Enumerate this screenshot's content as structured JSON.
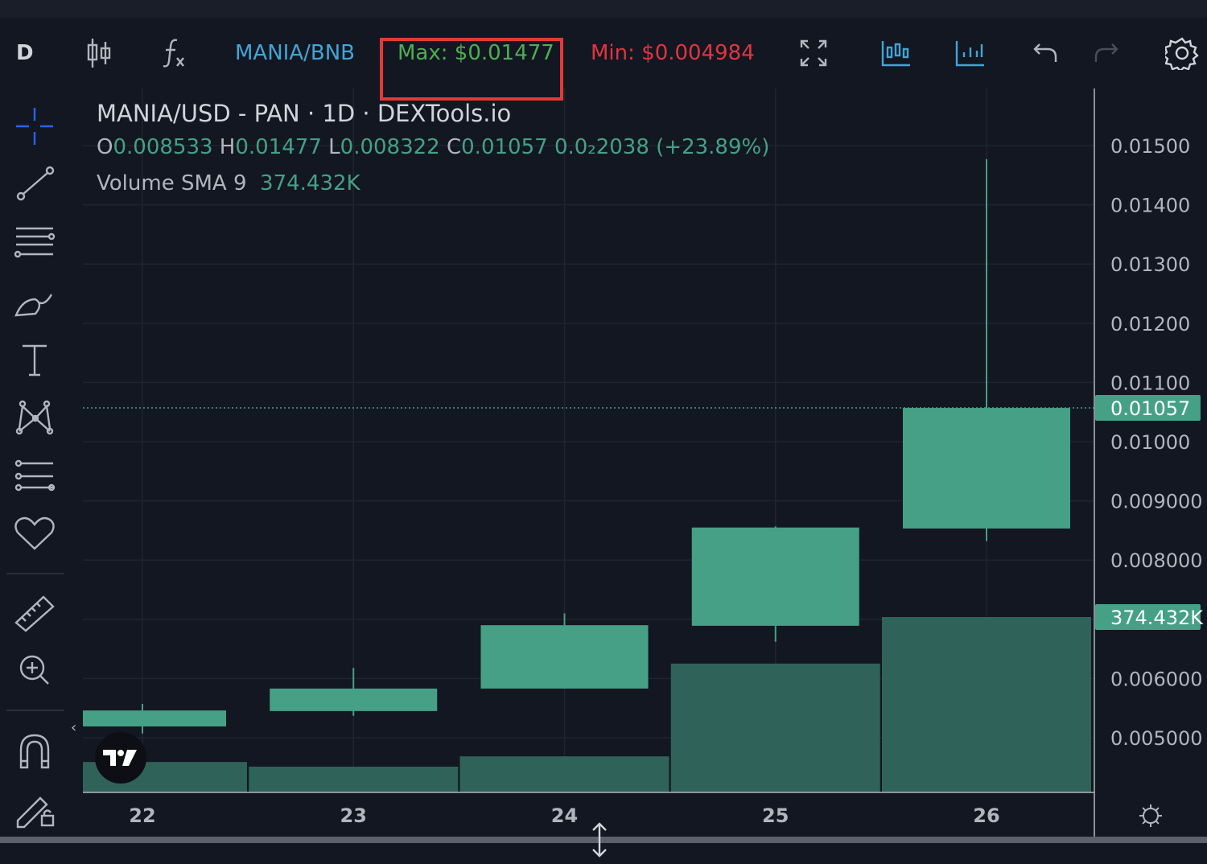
{
  "toolbar": {
    "interval": "D",
    "pair": "MANIA/BNB",
    "max_label": "Max: $0.01477",
    "min_label": "Min: $0.004984",
    "colors": {
      "pair": "#42a5d5",
      "max": "#4caf50",
      "min": "#e0353f",
      "highlight": "#e53935"
    },
    "icons": [
      "candles-icon",
      "indicators-icon",
      "fullscreen-icon",
      "chart-compare-icon",
      "volume-chart-icon",
      "undo-icon",
      "redo-icon",
      "settings-icon"
    ]
  },
  "sidebar": {
    "icons": [
      "crosshair-icon",
      "trend-line-icon",
      "fib-lines-icon",
      "brush-icon",
      "text-icon",
      "pattern-icon",
      "prediction-icon",
      "heart-icon",
      "ruler-icon",
      "zoom-in-icon",
      "magnet-icon",
      "lock-drawings-icon"
    ]
  },
  "legend": {
    "title": "MANIA/USD - PAN · 1D · DEXTools.io",
    "o_label": "O",
    "o_value": "0.008533",
    "h_label": "H",
    "h_value": "0.01477",
    "l_label": "L",
    "l_value": "0.008322",
    "c_label": "C",
    "c_value": "0.01057",
    "change": "0.0₂2038 (+23.89%)",
    "volume_label": "Volume SMA 9",
    "volume_value": "374.432K"
  },
  "chart_data": {
    "type": "candlestick",
    "title": "MANIA/USD - PAN · 1D · DEXTools.io",
    "categories": [
      "22",
      "23",
      "24",
      "25",
      "26"
    ],
    "ohlc": [
      {
        "o": 0.00519,
        "h": 0.00557,
        "l": 0.00507,
        "c": 0.00546
      },
      {
        "o": 0.00545,
        "h": 0.00618,
        "l": 0.00537,
        "c": 0.00583
      },
      {
        "o": 0.00583,
        "h": 0.0071,
        "l": 0.00583,
        "c": 0.0069
      },
      {
        "o": 0.00689,
        "h": 0.00857,
        "l": 0.00662,
        "c": 0.00855
      },
      {
        "o": 0.008533,
        "h": 0.01477,
        "l": 0.008322,
        "c": 0.01057
      }
    ],
    "volume": [
      65000,
      55000,
      77000,
      275000,
      374432
    ],
    "y_ticks": [
      "0.01500",
      "0.01400",
      "0.01300",
      "0.01200",
      "0.01100",
      "0.01000",
      "0.009000",
      "0.008000",
      "0.006000",
      "0.005000"
    ],
    "y_tick_values": [
      0.015,
      0.014,
      0.013,
      0.012,
      0.011,
      0.01,
      0.009,
      0.008,
      0.006,
      0.005
    ],
    "last_price_label": "0.01057",
    "last_price": 0.01057,
    "volume_label": "374.432K",
    "grid": true,
    "colors": {
      "up": "#45a086",
      "volume": "#2f6259",
      "bg": "#131722",
      "grid": "#1f2430"
    }
  }
}
